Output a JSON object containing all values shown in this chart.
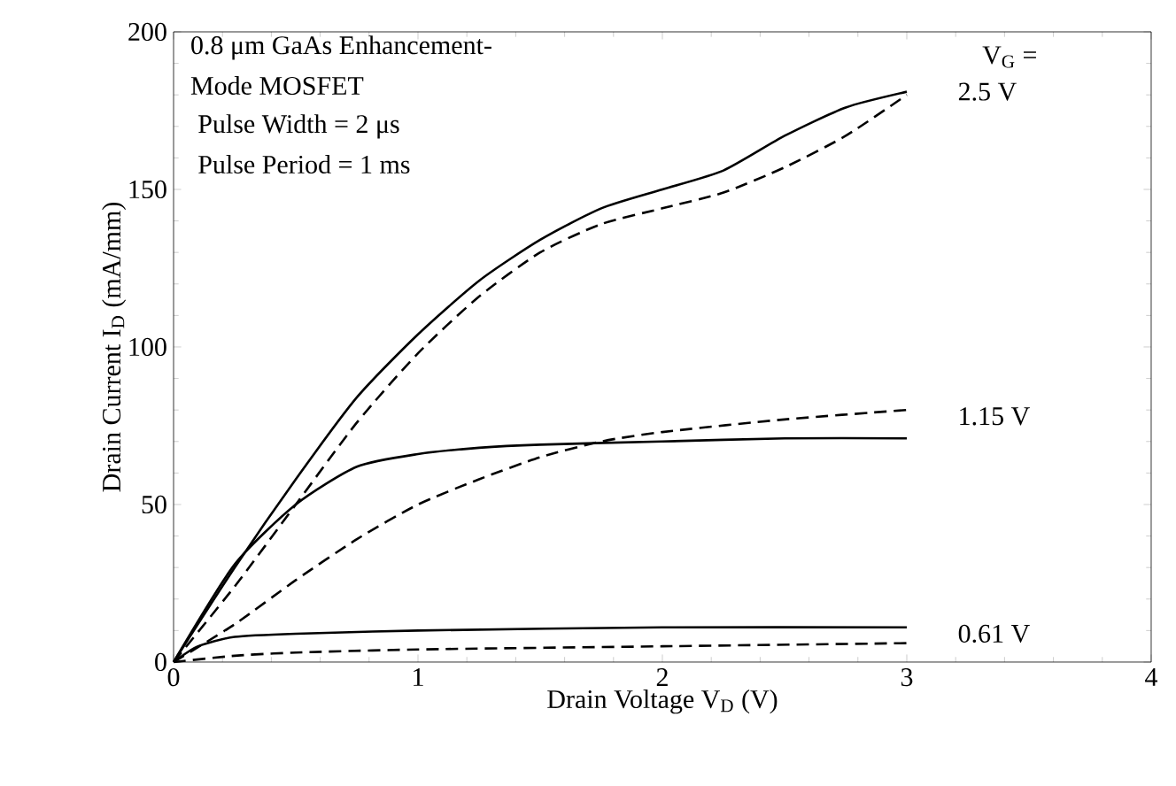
{
  "chart_data": {
    "type": "line",
    "xlabel": "Drain Voltage V$_{D}$ (V)",
    "ylabel": "Drain Current I$_{D}$ (mA/mm)",
    "xlim": [
      0,
      4
    ],
    "ylim": [
      0,
      200
    ],
    "xticks": [
      0,
      1,
      2,
      3,
      4
    ],
    "yticks": [
      0,
      50,
      100,
      150,
      200
    ],
    "grid": false,
    "marker": "none",
    "series": [
      {
        "color": "#000000",
        "line_style": "solid",
        "x": [
          0,
          0.25,
          0.5,
          0.75,
          1,
          1.25,
          1.5,
          1.75,
          2,
          2.25,
          2.5,
          2.75,
          3
        ],
        "values": [
          0,
          30,
          58,
          84,
          104,
          121,
          134,
          144,
          150,
          156,
          167,
          176,
          181
        ]
      },
      {
        "color": "#000000",
        "line_style": "dashed",
        "x": [
          0,
          0.25,
          0.5,
          0.75,
          1,
          1.25,
          1.5,
          1.75,
          2,
          2.25,
          2.5,
          2.75,
          3
        ],
        "values": [
          0,
          24,
          50,
          76,
          98,
          116,
          130,
          139,
          144,
          149,
          157,
          167,
          180
        ]
      },
      {
        "color": "#000000",
        "line_style": "solid",
        "x": [
          0,
          0.25,
          0.5,
          0.75,
          1,
          1.25,
          1.5,
          2,
          2.5,
          3
        ],
        "values": [
          0,
          31,
          50,
          62,
          66,
          68,
          69,
          70,
          71,
          71
        ]
      },
      {
        "color": "#000000",
        "line_style": "dashed",
        "x": [
          0,
          0.25,
          0.5,
          0.75,
          1,
          1.25,
          1.5,
          1.75,
          2,
          2.5,
          3
        ],
        "values": [
          0,
          12,
          26,
          39,
          50,
          58,
          65,
          70,
          73,
          77,
          80
        ]
      },
      {
        "color": "#000000",
        "line_style": "solid",
        "x": [
          0,
          0.1,
          0.25,
          0.5,
          1,
          2,
          3
        ],
        "values": [
          0,
          5,
          8,
          9,
          10,
          11,
          11
        ]
      },
      {
        "color": "#000000",
        "line_style": "dashed",
        "x": [
          0,
          0.25,
          0.5,
          1,
          2,
          3
        ],
        "values": [
          0,
          2,
          3,
          4,
          5,
          6
        ]
      }
    ],
    "annotations": [
      "0.8 μm GaAs Enhancement-",
      "Mode MOSFET",
      "Pulse Width = 2 μs",
      "Pulse Period = 1 ms",
      "V$_{G}$ =",
      "2.5 V",
      "1.15 V",
      "0.61 V"
    ]
  }
}
